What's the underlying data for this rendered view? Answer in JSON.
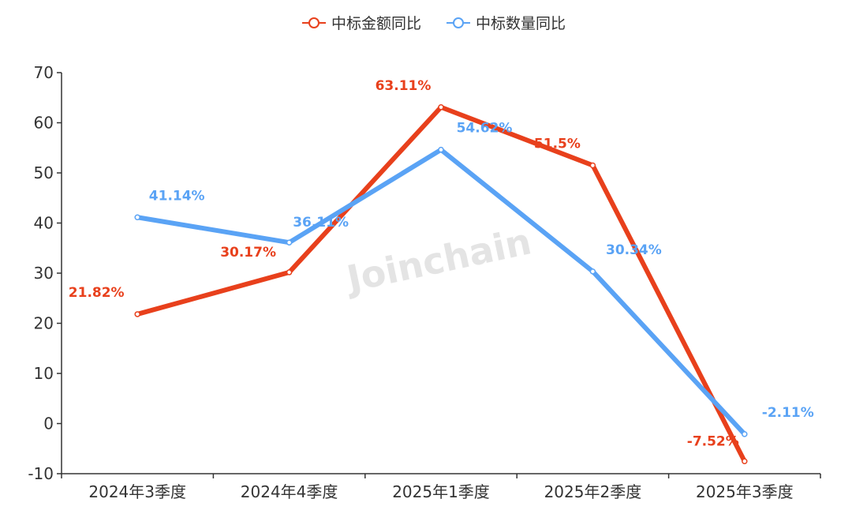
{
  "watermark": "Joinchain",
  "colors": {
    "series_0": "#e8401c",
    "series_1": "#5aa3f5",
    "axis": "#333333"
  },
  "chart_data": {
    "type": "line",
    "categories": [
      "2024年3季度",
      "2024年4季度",
      "2025年1季度",
      "2025年2季度",
      "2025年3季度"
    ],
    "series": [
      {
        "name": "中标金额同比",
        "values": [
          21.82,
          30.17,
          63.11,
          51.5,
          -7.52
        ],
        "labels": [
          "21.82%",
          "30.17%",
          "63.11%",
          "51.5%",
          "-7.52%"
        ]
      },
      {
        "name": "中标数量同比",
        "values": [
          41.14,
          36.11,
          54.62,
          30.34,
          -2.11
        ],
        "labels": [
          "41.14%",
          "36.11%",
          "54.62%",
          "30.34%",
          "-2.11%"
        ]
      }
    ],
    "ylim": [
      -10,
      70
    ],
    "yticks": [
      -10,
      0,
      10,
      20,
      30,
      40,
      50,
      60,
      70
    ],
    "grid": false,
    "legend_position": "top-center"
  }
}
